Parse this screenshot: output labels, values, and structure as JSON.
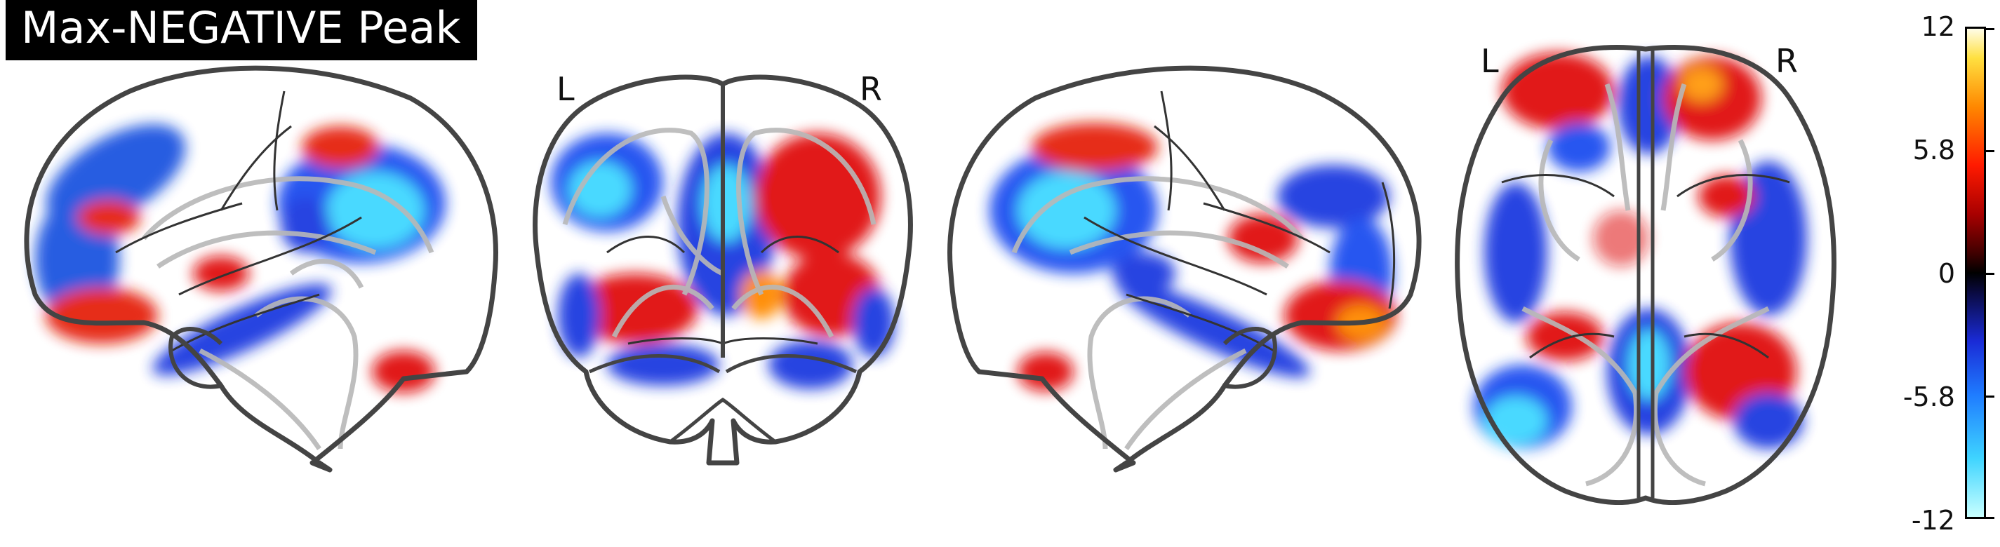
{
  "title": "Max-NEGATIVE Peak",
  "views": [
    {
      "name": "sagittal-left",
      "labels": []
    },
    {
      "name": "coronal",
      "labels": [
        "L",
        "R"
      ]
    },
    {
      "name": "sagittal-right",
      "labels": []
    },
    {
      "name": "axial",
      "labels": [
        "L",
        "R"
      ]
    }
  ],
  "colorbar": {
    "ticks": [
      "12",
      "5.8",
      "0",
      "-5.8",
      "-12"
    ],
    "colormap": [
      "#c8ffff",
      "#3fd4ff",
      "#1f7cff",
      "#1a2bd6",
      "#000000",
      "#a80000",
      "#ff1a00",
      "#ff8800",
      "#ffe040",
      "#fffde8"
    ]
  },
  "colors": {
    "outline": "#444444",
    "inner_outline": "#b8b8b8",
    "negative": "#1a2bd6",
    "negative_peak": "#40e8ff",
    "positive": "#e01010",
    "positive_peak": "#ff8a00"
  }
}
